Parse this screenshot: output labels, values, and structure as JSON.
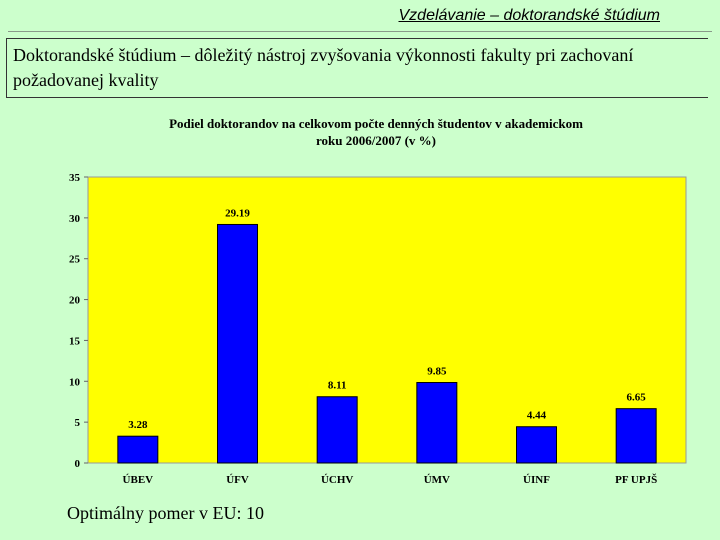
{
  "slide": {
    "title": "Vzdelávanie – doktorandské štúdium",
    "box_text": "Doktorandské štúdium – dôležitý nástroj zvyšovania výkonnosti fakulty pri zachovaní požadovanej kvality",
    "footnote": "Optimálny pomer v EU: 10"
  },
  "colors": {
    "background": "#ccffcc",
    "plot_area": "#ffff00",
    "bars": "#0000ff"
  },
  "chart_data": {
    "type": "bar",
    "title_lines": [
      "Podiel doktorandov na celkovom počte denných študentov v akademickom",
      "roku 2006/2007 (v %)"
    ],
    "categories": [
      "ÚBEV",
      "ÚFV",
      "ÚCHV",
      "ÚMV",
      "ÚINF",
      "PF UPJŠ"
    ],
    "values": [
      3.28,
      29.19,
      8.11,
      9.85,
      4.44,
      6.65
    ],
    "value_labels": [
      "3.28",
      "29.19",
      "8.11",
      "9.85",
      "4.44",
      "6.65"
    ],
    "ylim": [
      0,
      35
    ],
    "yticks": [
      "0",
      "5",
      "10",
      "15",
      "20",
      "25",
      "30",
      "35"
    ],
    "ytick_values": [
      0,
      5,
      10,
      15,
      20,
      25,
      30,
      35
    ],
    "grid": false,
    "legend": "none"
  }
}
